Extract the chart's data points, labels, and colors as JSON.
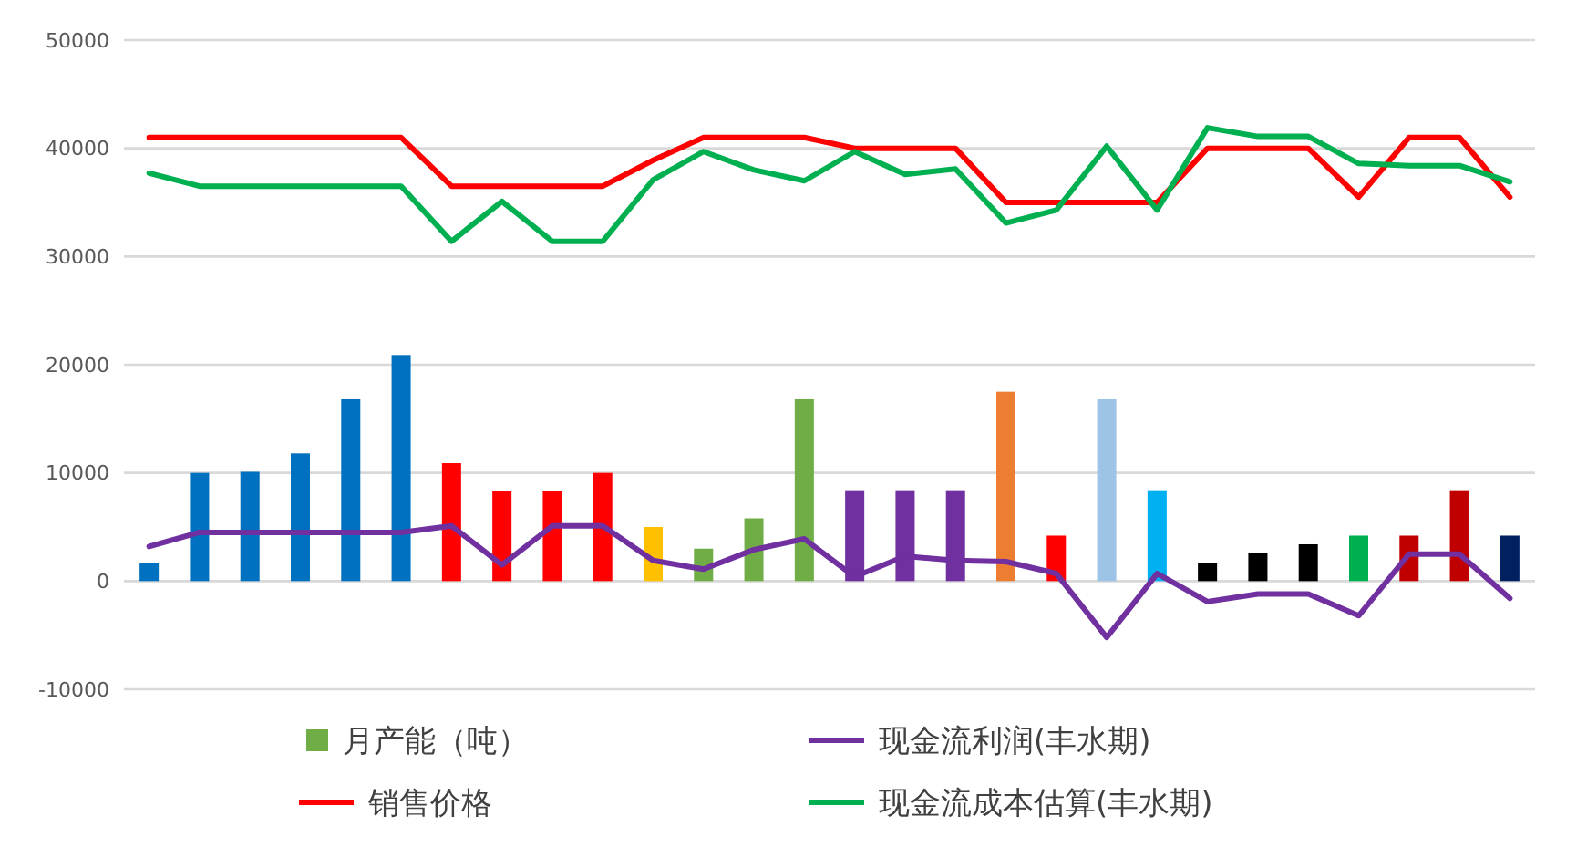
{
  "chart_data": {
    "type": "bar",
    "categories": [
      null,
      null,
      null,
      null,
      null,
      null,
      null,
      null,
      null,
      null,
      null,
      null,
      null,
      null,
      null,
      null,
      null,
      null,
      null,
      null,
      null,
      null,
      null,
      null,
      null,
      null,
      null,
      null
    ],
    "series": [
      {
        "name": "月产能（吨）",
        "color": "#70ad47",
        "colors": [
          "#0070c0",
          "#0070c0",
          "#0070c0",
          "#0070c0",
          "#0070c0",
          "#0070c0",
          "#ff0000",
          "#ff0000",
          "#ff0000",
          "#ff0000",
          "#ffc000",
          "#70ad47",
          "#70ad47",
          "#70ad47",
          "#7030a0",
          "#7030a0",
          "#7030a0",
          "#ed7d31",
          "#ff0000",
          "#9dc3e6",
          "#00b0f0",
          "#000000",
          "#000000",
          "#000000",
          "#00b050",
          "#c00000",
          "#c00000",
          "#002060"
        ],
        "values": [
          1700,
          10000,
          10100,
          11800,
          16800,
          20900,
          10900,
          8300,
          8300,
          10000,
          5000,
          3000,
          5800,
          16800,
          8400,
          8400,
          8400,
          17500,
          4200,
          16800,
          8400,
          1700,
          2600,
          3400,
          4200,
          4200,
          8400,
          4200
        ]
      },
      {
        "name": "现金流利润(丰水期)",
        "type": "line",
        "color": "#7030a0",
        "values": [
          3200,
          4500,
          4500,
          4500,
          4500,
          4500,
          5100,
          1500,
          5100,
          5100,
          1900,
          1100,
          2900,
          3900,
          400,
          2300,
          1900,
          1800,
          700,
          -5200,
          700,
          -1900,
          -1200,
          -1200,
          -3200,
          2500,
          2500,
          -1600
        ]
      },
      {
        "name": "销售价格",
        "type": "line",
        "color": "#ff0000",
        "values": [
          41000,
          41000,
          41000,
          41000,
          41000,
          41000,
          36500,
          36500,
          36500,
          36500,
          38900,
          41000,
          41000,
          41000,
          40000,
          40000,
          40000,
          35000,
          35000,
          35000,
          35000,
          40000,
          40000,
          40000,
          35500,
          41000,
          41000,
          35500
        ]
      },
      {
        "name": "现金流成本估算(丰水期)",
        "type": "line",
        "color": "#00b050",
        "values": [
          37700,
          36500,
          36500,
          36500,
          36500,
          36500,
          31400,
          35100,
          31400,
          31400,
          37100,
          39700,
          38000,
          37000,
          39700,
          37600,
          38100,
          33100,
          34300,
          40200,
          34300,
          41900,
          41100,
          41100,
          38600,
          38400,
          38400,
          36900
        ]
      }
    ],
    "ylim": [
      -10000,
      50000
    ],
    "yticks": [
      -10000,
      0,
      10000,
      20000,
      30000,
      40000,
      50000
    ],
    "grid": "y",
    "legend": "bottom"
  }
}
